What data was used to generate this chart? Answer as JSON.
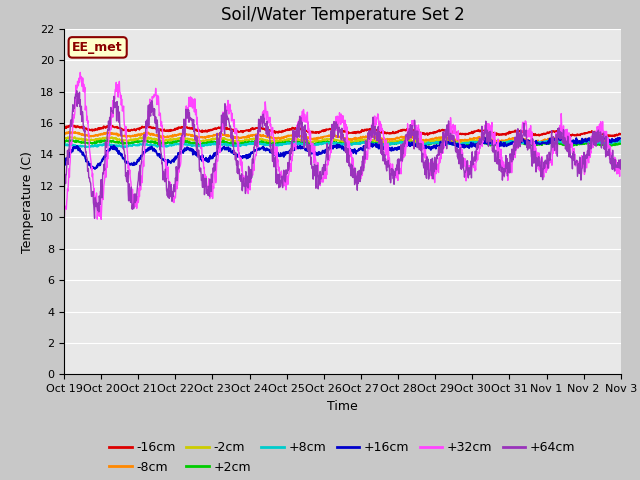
{
  "title": "Soil/Water Temperature Set 2",
  "xlabel": "Time",
  "ylabel": "Temperature (C)",
  "ylim": [
    0,
    22
  ],
  "yticks": [
    0,
    2,
    4,
    6,
    8,
    10,
    12,
    14,
    16,
    18,
    20,
    22
  ],
  "annotation_text": "EE_met",
  "annotation_bg": "#ffffcc",
  "annotation_border": "#8B0000",
  "annotation_text_color": "#8B0000",
  "series_colors": {
    "-16cm": "#dd0000",
    "-8cm": "#ff8800",
    "-2cm": "#cccc00",
    "+2cm": "#00cc00",
    "+8cm": "#00cccc",
    "+16cm": "#0000cc",
    "+32cm": "#ff44ff",
    "+64cm": "#9933bb"
  },
  "date_labels": [
    "Oct 19",
    "Oct 20",
    "Oct 21",
    "Oct 22",
    "Oct 23",
    "Oct 24",
    "Oct 25",
    "Oct 26",
    "Oct 27",
    "Oct 28",
    "Oct 29",
    "Oct 30",
    "Oct 31",
    "Nov 1",
    "Nov 2",
    "Nov 3"
  ],
  "n_days": 15,
  "n_points": 1440,
  "title_fontsize": 12,
  "label_fontsize": 9,
  "tick_fontsize": 8,
  "legend_fontsize": 9,
  "fig_bg": "#c8c8c8",
  "plot_bg": "#e8e8e8",
  "grid_color": "#ffffff",
  "legend_row1": [
    "-16cm",
    "-8cm",
    "-2cm",
    "+2cm",
    "+8cm",
    "+16cm"
  ],
  "legend_row2": [
    "+32cm",
    "+64cm"
  ]
}
